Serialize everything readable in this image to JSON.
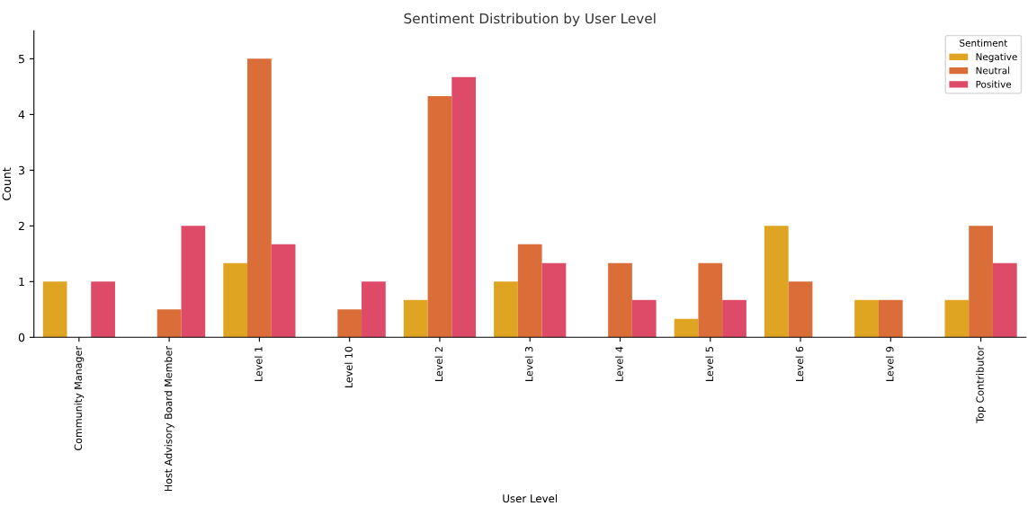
{
  "chart_data": {
    "type": "bar",
    "title": "Sentiment Distribution by User Level",
    "xlabel": "User Level",
    "ylabel": "Count",
    "legend_title": "Sentiment",
    "legend": "top right",
    "grid": false,
    "categories": [
      "Community Manager",
      "Host Advisory Board Member",
      "Level 1",
      "Level 10",
      "Level 2",
      "Level 3",
      "Level 4",
      "Level 5",
      "Level 6",
      "Level 9",
      "Top Contributor"
    ],
    "ylim": [
      0,
      5.5
    ],
    "yticks": [
      0,
      1,
      2,
      3,
      4,
      5
    ],
    "series": [
      {
        "name": "Negative",
        "color": "#e0a423",
        "values": [
          1,
          0,
          1.33,
          0,
          0.67,
          1,
          0,
          0.33,
          2,
          0.67,
          0.67
        ]
      },
      {
        "name": "Neutral",
        "color": "#db6e38",
        "values": [
          0,
          0.5,
          5,
          0.5,
          4.33,
          1.67,
          1.33,
          1.33,
          1,
          0.67,
          2
        ]
      },
      {
        "name": "Positive",
        "color": "#dd4b68",
        "values": [
          1,
          2,
          1.67,
          1,
          4.67,
          1.33,
          0.67,
          0.67,
          0,
          0,
          1.33
        ]
      }
    ]
  }
}
